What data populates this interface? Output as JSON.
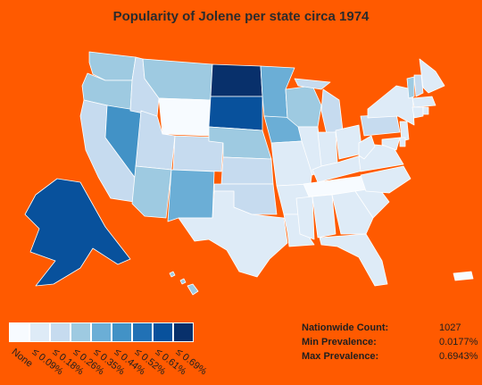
{
  "title": "Popularity of Jolene per state circa 1974",
  "palette": [
    "#f7fbff",
    "#deebf7",
    "#c6dbef",
    "#9ecae1",
    "#6baed6",
    "#4292c6",
    "#2171b5",
    "#08519c",
    "#08306b"
  ],
  "legend": {
    "labels": [
      "None",
      "≤ 0.09%",
      "≤ 0.18%",
      "≤ 0.26%",
      "≤ 0.35%",
      "≤ 0.44%",
      "≤ 0.52%",
      "≤ 0.61%",
      "≤ 0.69%"
    ]
  },
  "stats": [
    {
      "label": "Nationwide Count:",
      "value": "1027"
    },
    {
      "label": "Min Prevalence:",
      "value": "0.0177%"
    },
    {
      "label": "Max Prevalence:",
      "value": "0.6943%"
    }
  ],
  "chart_data": {
    "type": "choropleth",
    "title": "Popularity of Jolene per state circa 1974",
    "scale_labels": [
      "None",
      "≤ 0.09%",
      "≤ 0.18%",
      "≤ 0.26%",
      "≤ 0.35%",
      "≤ 0.44%",
      "≤ 0.52%",
      "≤ 0.61%",
      "≤ 0.69%"
    ],
    "states": [
      {
        "state": "WA",
        "bin": 3
      },
      {
        "state": "OR",
        "bin": 3
      },
      {
        "state": "CA",
        "bin": 2
      },
      {
        "state": "NV",
        "bin": 5
      },
      {
        "state": "ID",
        "bin": 2
      },
      {
        "state": "MT",
        "bin": 3
      },
      {
        "state": "WY",
        "bin": 0
      },
      {
        "state": "UT",
        "bin": 2
      },
      {
        "state": "AZ",
        "bin": 3
      },
      {
        "state": "CO",
        "bin": 2
      },
      {
        "state": "NM",
        "bin": 4
      },
      {
        "state": "ND",
        "bin": 8
      },
      {
        "state": "SD",
        "bin": 7
      },
      {
        "state": "NE",
        "bin": 3
      },
      {
        "state": "KS",
        "bin": 2
      },
      {
        "state": "OK",
        "bin": 2
      },
      {
        "state": "TX",
        "bin": 1
      },
      {
        "state": "MN",
        "bin": 4
      },
      {
        "state": "IA",
        "bin": 4
      },
      {
        "state": "MO",
        "bin": 1
      },
      {
        "state": "AR",
        "bin": 1
      },
      {
        "state": "LA",
        "bin": 1
      },
      {
        "state": "WI",
        "bin": 3
      },
      {
        "state": "IL",
        "bin": 1
      },
      {
        "state": "MI",
        "bin": 2
      },
      {
        "state": "IN",
        "bin": 1
      },
      {
        "state": "OH",
        "bin": 1
      },
      {
        "state": "KY",
        "bin": 1
      },
      {
        "state": "TN",
        "bin": 0
      },
      {
        "state": "MS",
        "bin": 1
      },
      {
        "state": "AL",
        "bin": 1
      },
      {
        "state": "GA",
        "bin": 1
      },
      {
        "state": "FL",
        "bin": 1
      },
      {
        "state": "SC",
        "bin": 1
      },
      {
        "state": "NC",
        "bin": 1
      },
      {
        "state": "VA",
        "bin": 1
      },
      {
        "state": "WV",
        "bin": 1
      },
      {
        "state": "PA",
        "bin": 2
      },
      {
        "state": "NY",
        "bin": 1
      },
      {
        "state": "VT",
        "bin": 3
      },
      {
        "state": "NH",
        "bin": 2
      },
      {
        "state": "ME",
        "bin": 1
      },
      {
        "state": "MA",
        "bin": 1
      },
      {
        "state": "CT",
        "bin": 1
      },
      {
        "state": "NJ",
        "bin": 1
      },
      {
        "state": "MD",
        "bin": 1
      },
      {
        "state": "DE",
        "bin": 1
      },
      {
        "state": "RI",
        "bin": 1
      },
      {
        "state": "AK",
        "bin": 7
      },
      {
        "state": "HI",
        "bin": 3
      },
      {
        "state": "PR",
        "bin": 0
      }
    ]
  }
}
